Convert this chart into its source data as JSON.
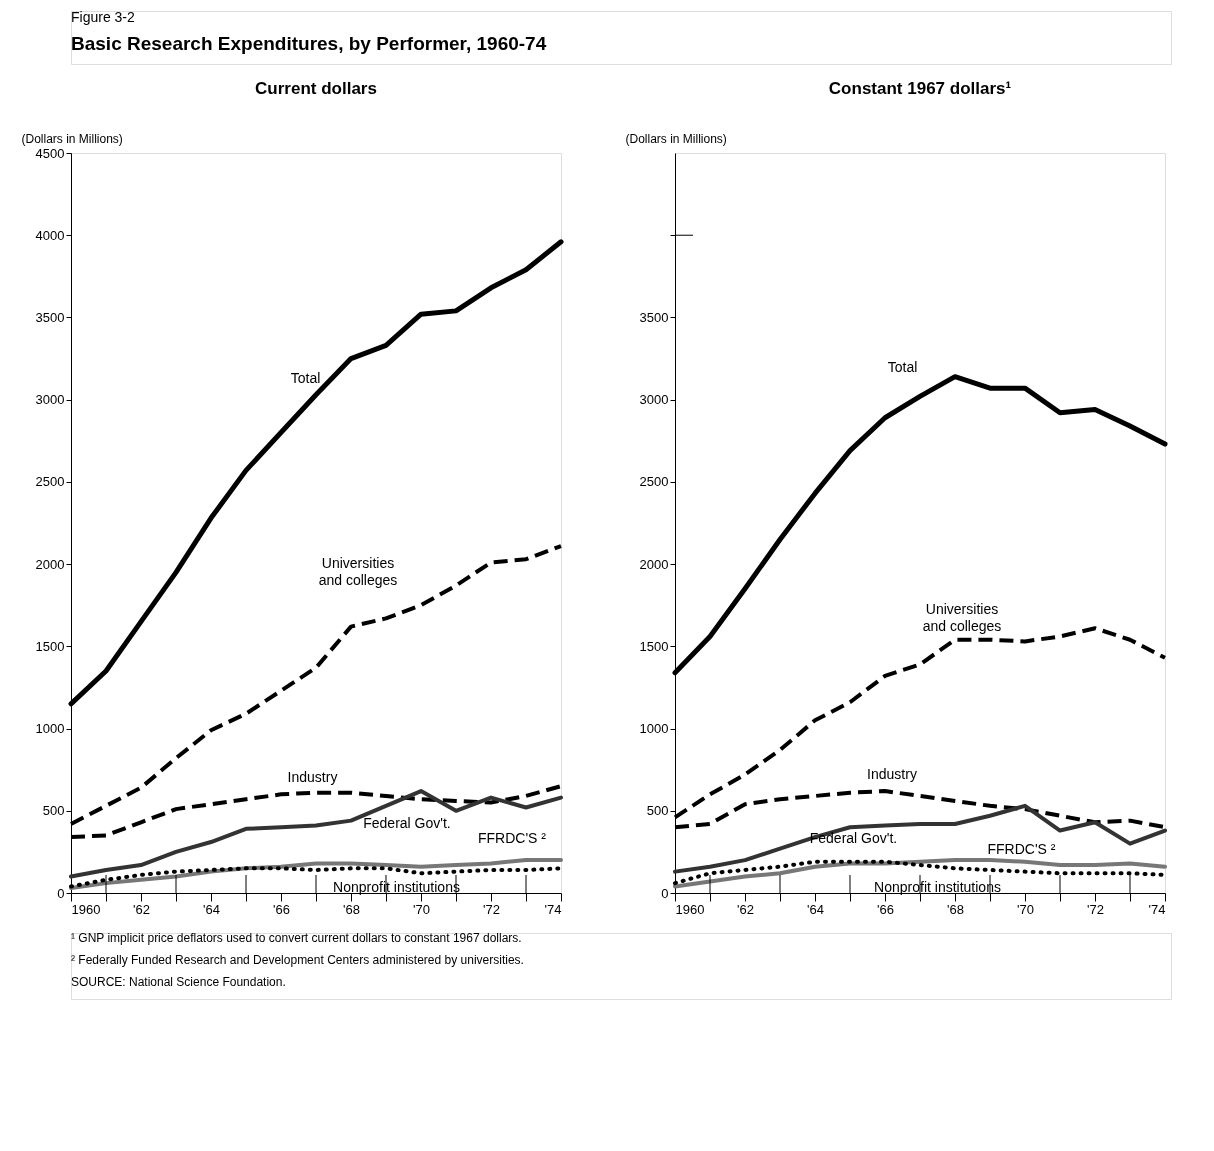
{
  "chart_data": [
    {
      "type": "line",
      "title": "Current dollars",
      "ylabel": "(Dollars in Millions)",
      "grid": false,
      "x": [
        1960,
        1961,
        1962,
        1963,
        1964,
        1965,
        1966,
        1967,
        1968,
        1969,
        1970,
        1971,
        1972,
        1973,
        1974
      ],
      "xlim": [
        1960,
        1974
      ],
      "xticks": [
        {
          "value": 1960,
          "label": "1960"
        },
        {
          "value": 1961,
          "label": null
        },
        {
          "value": 1962,
          "label": "'62"
        },
        {
          "value": 1963,
          "label": null
        },
        {
          "value": 1964,
          "label": "'64"
        },
        {
          "value": 1965,
          "label": null
        },
        {
          "value": 1966,
          "label": "'66"
        },
        {
          "value": 1967,
          "label": null
        },
        {
          "value": 1968,
          "label": "'68"
        },
        {
          "value": 1969,
          "label": null
        },
        {
          "value": 1970,
          "label": "'70"
        },
        {
          "value": 1971,
          "label": null
        },
        {
          "value": 1972,
          "label": "'72"
        },
        {
          "value": 1973,
          "label": null
        },
        {
          "value": 1974,
          "label": "'74"
        }
      ],
      "ylim": [
        0,
        4500
      ],
      "yticks": [
        0,
        500,
        1000,
        1500,
        2000,
        2500,
        3000,
        3500,
        4000,
        4500
      ],
      "series": [
        {
          "color": "#000000",
          "line_style": "solid",
          "values": [
            1150,
            1350,
            1650,
            1950,
            2280,
            2570,
            2800,
            3030,
            3250,
            3330,
            3520,
            3540,
            3680,
            3790,
            3960
          ]
        },
        {
          "color": "#000000",
          "line_style": "dashed",
          "values": [
            420,
            530,
            640,
            820,
            990,
            1090,
            1230,
            1370,
            1620,
            1670,
            1750,
            1870,
            2010,
            2030,
            2110
          ]
        },
        {
          "color": "#000000",
          "line_style": "dashed",
          "values": [
            340,
            350,
            430,
            510,
            540,
            570,
            600,
            610,
            610,
            590,
            570,
            560,
            550,
            590,
            650
          ]
        },
        {
          "color": "#333333",
          "line_style": "solid",
          "values": [
            100,
            140,
            170,
            250,
            310,
            390,
            400,
            410,
            440,
            530,
            620,
            500,
            580,
            520,
            580
          ]
        },
        {
          "color": "#777777",
          "line_style": "solid",
          "values": [
            30,
            60,
            80,
            100,
            130,
            150,
            160,
            180,
            180,
            170,
            160,
            170,
            180,
            200,
            200
          ]
        },
        {
          "color": "#000000",
          "line_style": "dotted",
          "values": [
            40,
            80,
            110,
            130,
            140,
            150,
            150,
            140,
            150,
            150,
            120,
            130,
            140,
            140,
            150
          ]
        }
      ],
      "annotations": [
        "Figure 3-2",
        "Basic Research Expenditures, by Performer, 1960-74",
        "¹ GNP implicit price deflators used to convert current dollars to constant 1967 dollars.",
        "² Federally Funded Research and Development Centers administered by universities.",
        "SOURCE: National Science Foundation.",
        "Total",
        "Universities\nand colleges",
        "Industry",
        "Federal Gov't.",
        "FFRDC'S ²",
        "Nonprofit institutions"
      ]
    },
    {
      "type": "line",
      "title": "Constant 1967 dollars¹",
      "ylabel": "(Dollars in Millions)",
      "grid": false,
      "x": [
        1960,
        1961,
        1962,
        1963,
        1964,
        1965,
        1966,
        1967,
        1968,
        1969,
        1970,
        1971,
        1972,
        1973,
        1974
      ],
      "xlim": [
        1960,
        1974
      ],
      "xticks": [
        {
          "value": 1960,
          "label": "1960"
        },
        {
          "value": 1961,
          "label": null
        },
        {
          "value": 1962,
          "label": "'62"
        },
        {
          "value": 1963,
          "label": null
        },
        {
          "value": 1964,
          "label": "'64"
        },
        {
          "value": 1965,
          "label": null
        },
        {
          "value": 1966,
          "label": "'66"
        },
        {
          "value": 1967,
          "label": null
        },
        {
          "value": 1968,
          "label": "'68"
        },
        {
          "value": 1969,
          "label": null
        },
        {
          "value": 1970,
          "label": "'70"
        },
        {
          "value": 1971,
          "label": null
        },
        {
          "value": 1972,
          "label": "'72"
        },
        {
          "value": 1973,
          "label": null
        },
        {
          "value": 1974,
          "label": "'74"
        }
      ],
      "ylim": [
        0,
        4500
      ],
      "yticks": [
        0,
        500,
        1000,
        1500,
        2000,
        2500,
        3000,
        3500,
        {
          "value": 4000,
          "label": null
        }
      ],
      "series": [
        {
          "color": "#000000",
          "line_style": "solid",
          "values": [
            1340,
            1560,
            1850,
            2150,
            2430,
            2690,
            2890,
            3020,
            3140,
            3070,
            3070,
            2920,
            2940,
            2840,
            2730
          ]
        },
        {
          "color": "#000000",
          "line_style": "dashed",
          "values": [
            460,
            600,
            720,
            870,
            1050,
            1160,
            1320,
            1390,
            1540,
            1540,
            1530,
            1560,
            1610,
            1540,
            1430
          ]
        },
        {
          "color": "#000000",
          "line_style": "dashed",
          "values": [
            400,
            420,
            540,
            570,
            590,
            610,
            620,
            590,
            560,
            530,
            510,
            470,
            430,
            440,
            400
          ]
        },
        {
          "color": "#333333",
          "line_style": "solid",
          "values": [
            130,
            160,
            200,
            270,
            340,
            400,
            410,
            420,
            420,
            470,
            530,
            380,
            430,
            300,
            380
          ]
        },
        {
          "color": "#777777",
          "line_style": "solid",
          "values": [
            40,
            70,
            100,
            120,
            160,
            180,
            180,
            190,
            200,
            200,
            190,
            170,
            170,
            180,
            160
          ]
        },
        {
          "color": "#000000",
          "line_style": "dotted",
          "values": [
            60,
            120,
            140,
            160,
            190,
            190,
            190,
            170,
            150,
            140,
            130,
            120,
            120,
            120,
            110
          ]
        }
      ],
      "annotations": [
        "Total",
        "Universities\nand colleges",
        "Industry",
        "Federal Gov't.",
        "FFRDC'S ²",
        "Nonprofit institutions"
      ]
    }
  ]
}
